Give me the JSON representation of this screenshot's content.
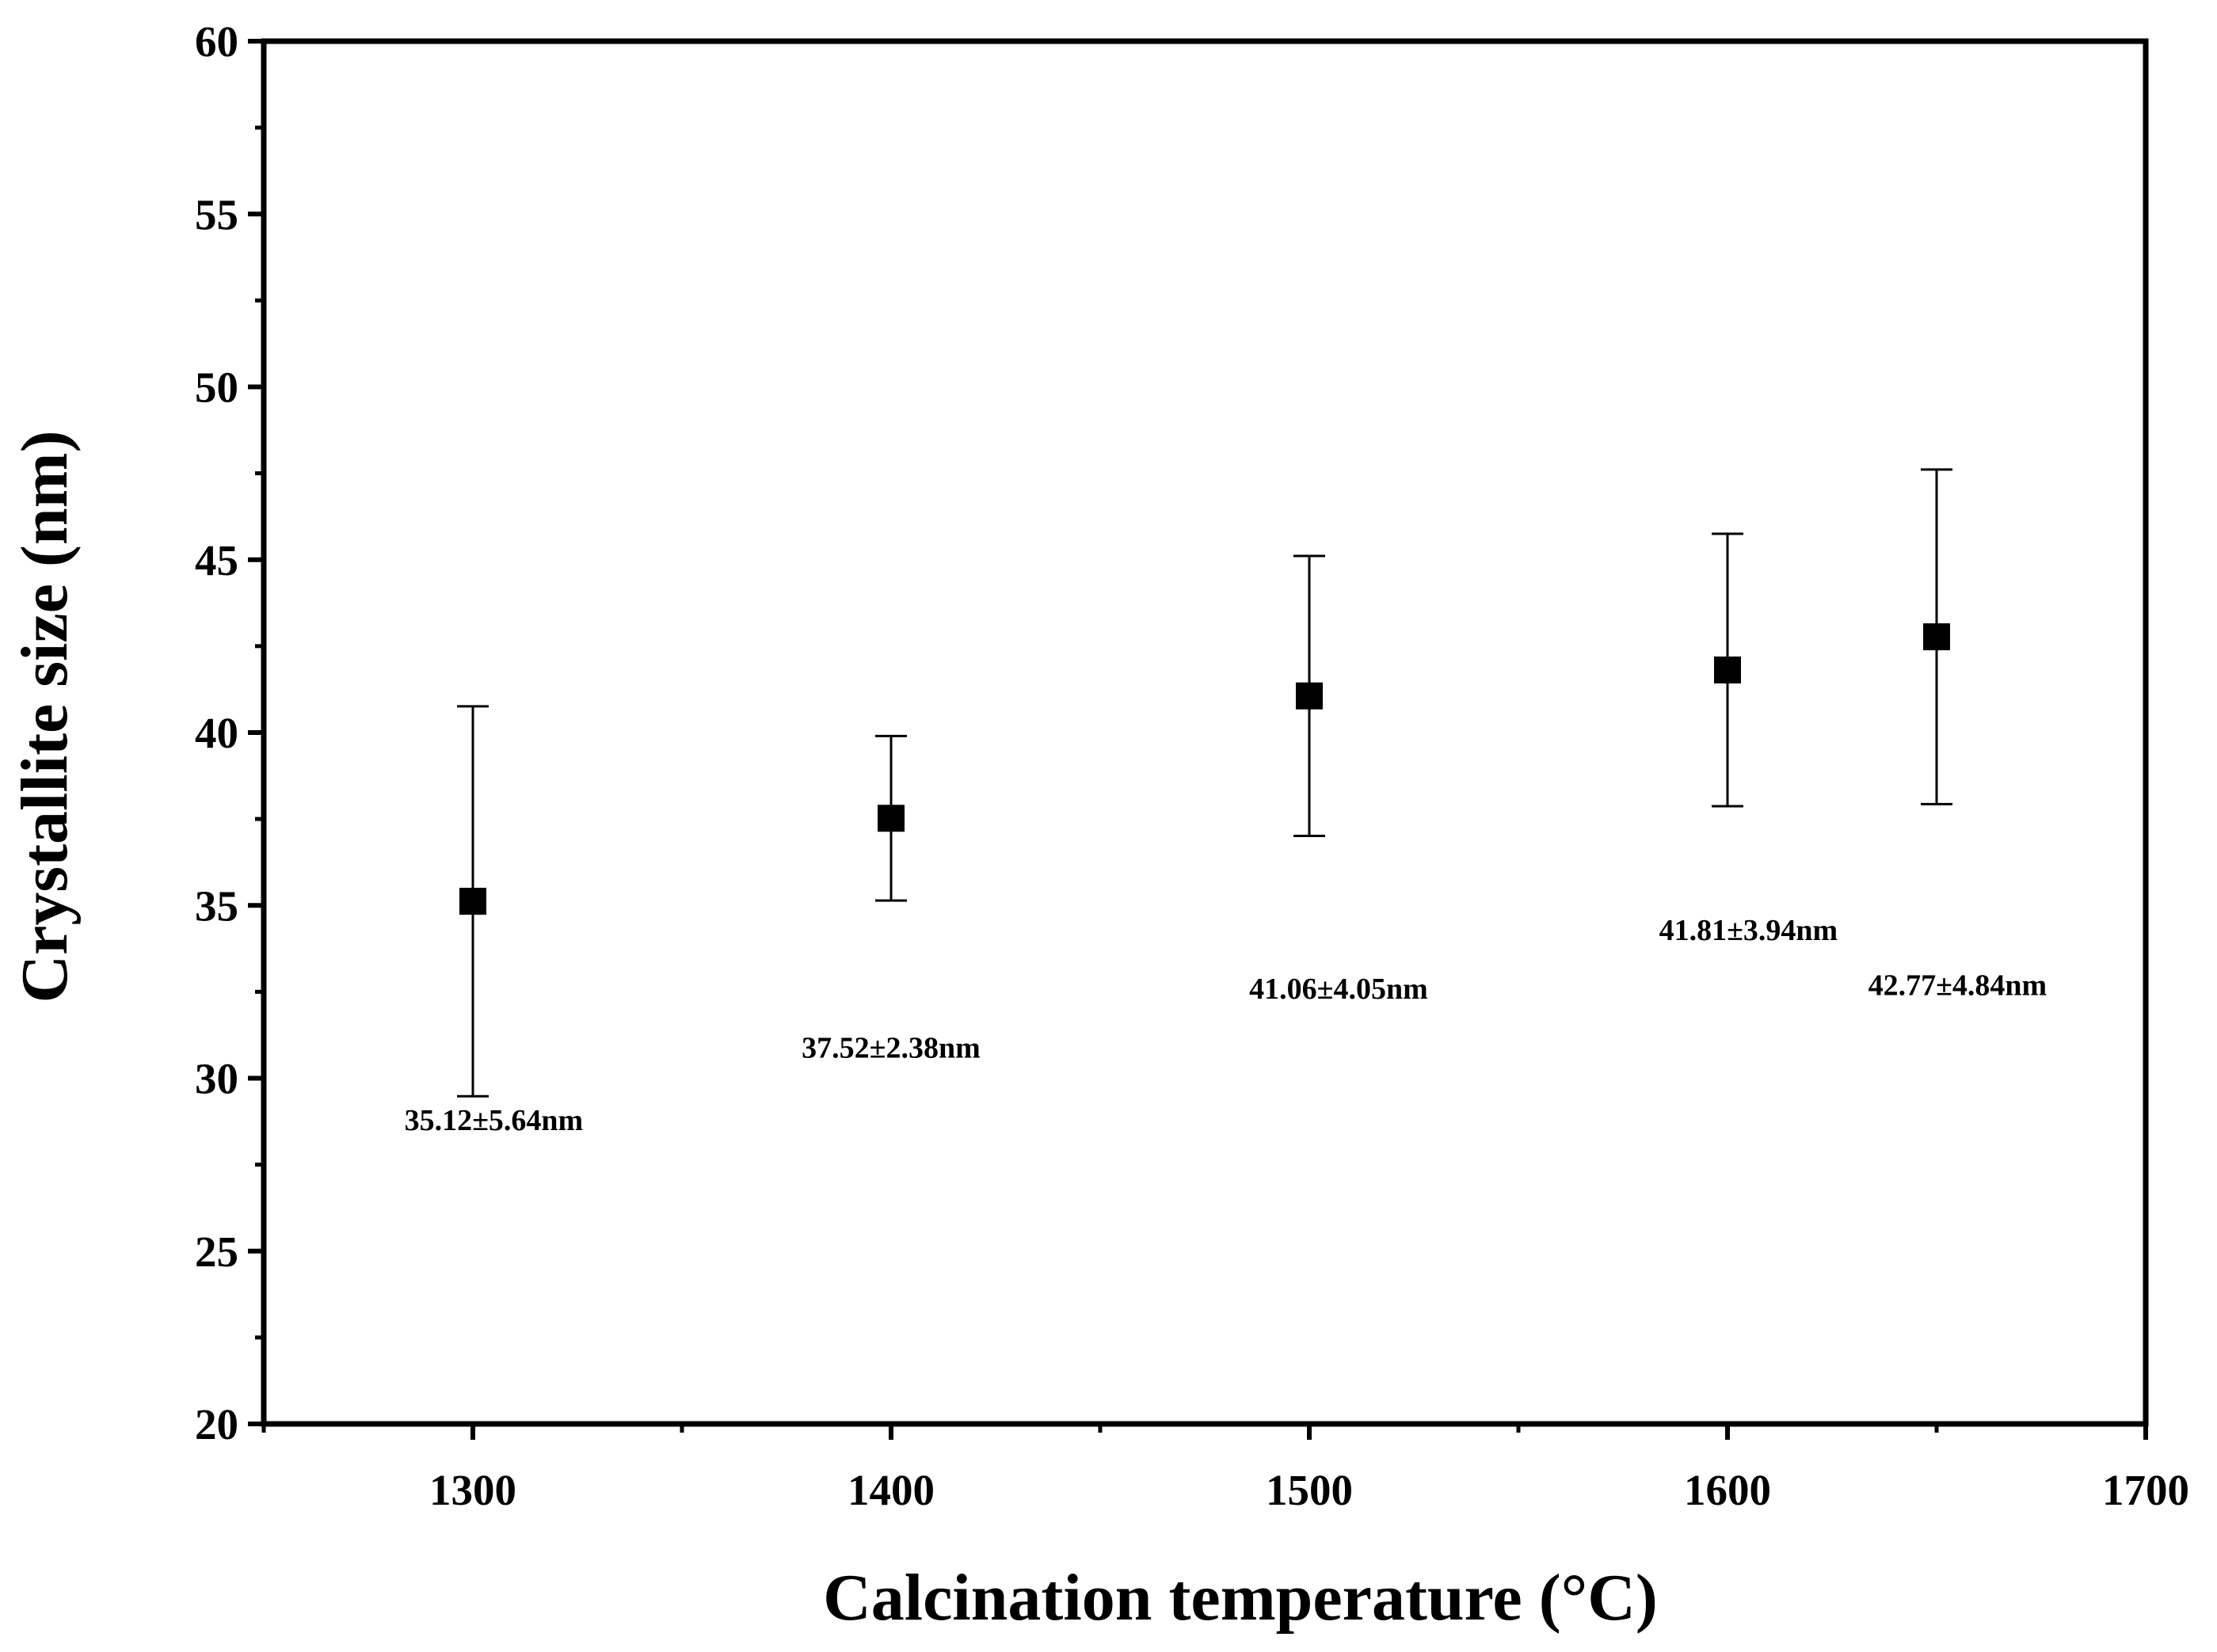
{
  "chart_data": {
    "type": "scatter",
    "title": "",
    "xlabel": "Calcination temperature (°C)",
    "ylabel": "Crystallite size (nm)",
    "xlim": [
      1250,
      1700
    ],
    "ylim": [
      20,
      60
    ],
    "x_ticks": [
      1300,
      1400,
      1500,
      1600,
      1700
    ],
    "x_tick_labels": [
      "1300",
      "1400",
      "1500",
      "1600",
      "1700"
    ],
    "y_ticks": [
      20,
      25,
      30,
      35,
      40,
      45,
      50,
      55,
      60
    ],
    "y_tick_labels": [
      "20",
      "25",
      "30",
      "35",
      "40",
      "45",
      "50",
      "55",
      "60"
    ],
    "grid": false,
    "legend": "none",
    "marker": "square",
    "series": [
      {
        "name": "Crystallite size",
        "x": [
          1300,
          1400,
          1500,
          1600,
          1650
        ],
        "y": [
          35.12,
          37.52,
          41.06,
          41.81,
          42.77
        ],
        "error": [
          5.64,
          2.38,
          4.05,
          3.94,
          4.84
        ]
      }
    ],
    "annotations": [
      {
        "text": "35.12±5.64nm",
        "x": 1305,
        "y": 28.5
      },
      {
        "text": "37.52±2.38nm",
        "x": 1400,
        "y": 30.6
      },
      {
        "text": "41.06±4.05nm",
        "x": 1507,
        "y": 32.3
      },
      {
        "text": "41.81±3.94nm",
        "x": 1605,
        "y": 34.0
      },
      {
        "text": "42.77±4.84nm",
        "x": 1655,
        "y": 32.4
      }
    ],
    "colors": {
      "marker": "#000000",
      "axis": "#000000",
      "background": "#ffffff"
    }
  }
}
